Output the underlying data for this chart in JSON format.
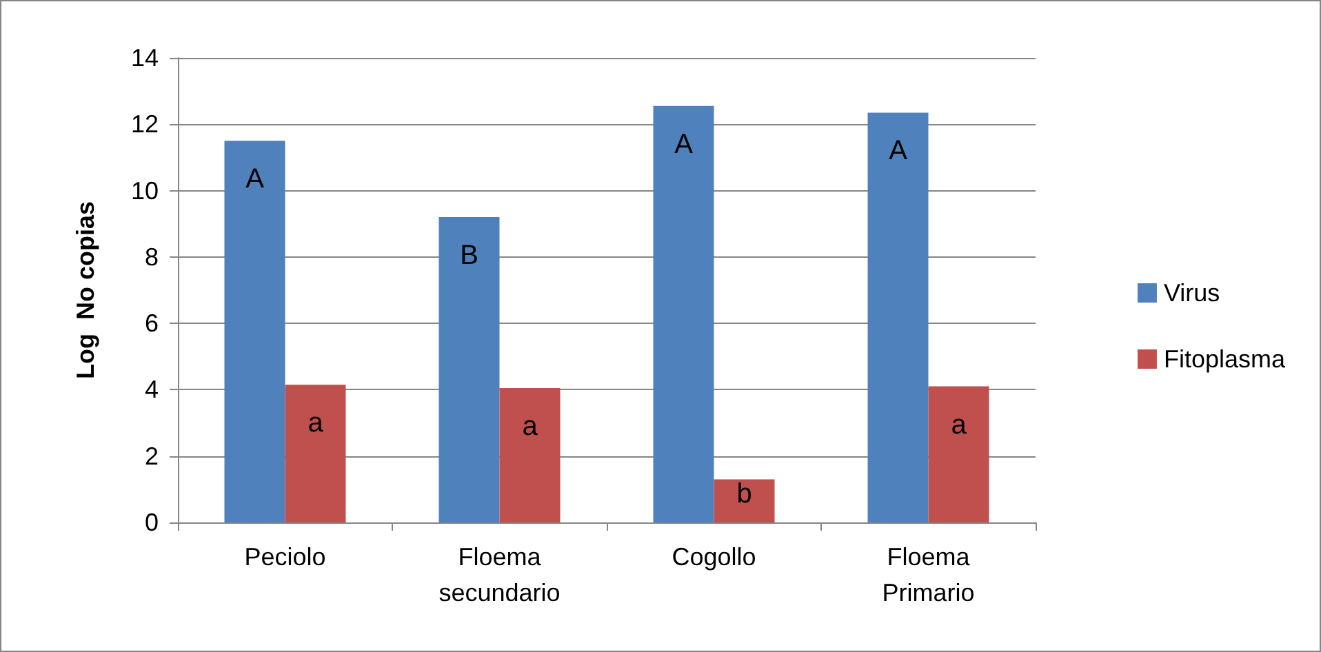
{
  "chart_data": {
    "type": "bar",
    "ylabel": "Log  No copias",
    "categories": [
      "Peciolo",
      "Floema secundario",
      "Cogollo",
      "Floema Primario"
    ],
    "series": [
      {
        "name": "Virus",
        "color": "#4f81bd",
        "values": [
          11.5,
          9.2,
          12.55,
          12.35
        ],
        "value_labels": [
          "A",
          "B",
          "A",
          "A"
        ]
      },
      {
        "name": "Fitoplasma",
        "color": "#c0504d",
        "values": [
          4.15,
          4.05,
          1.3,
          4.1
        ],
        "value_labels": [
          "a",
          "a",
          "b",
          "a"
        ]
      }
    ],
    "ylim": [
      0,
      14
    ],
    "yticks": [
      0,
      2,
      4,
      6,
      8,
      10,
      12,
      14
    ],
    "grid": "y",
    "legend": "right"
  }
}
